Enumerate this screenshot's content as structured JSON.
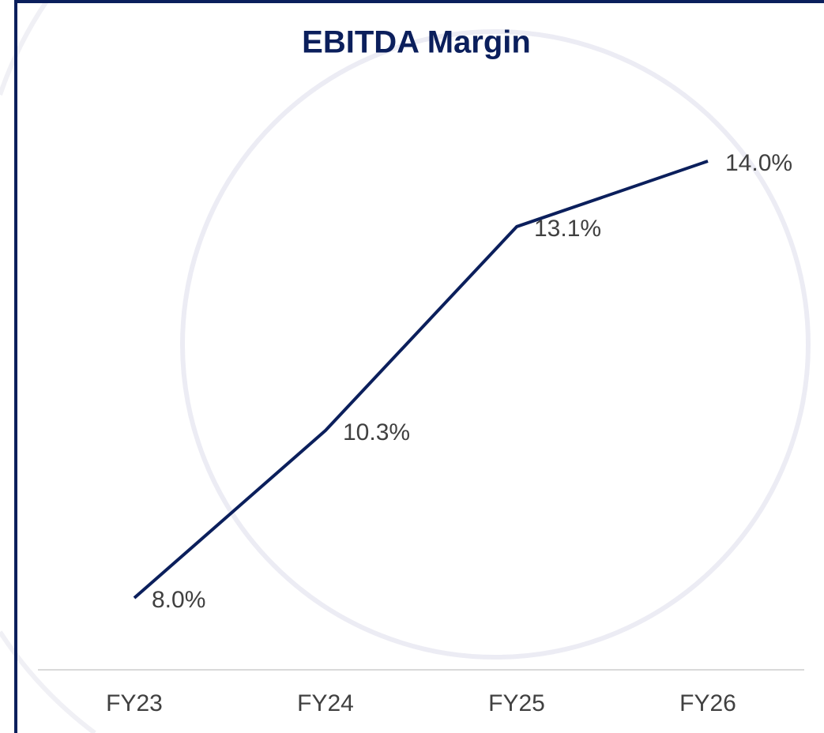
{
  "chart_data": {
    "type": "line",
    "title": "EBITDA Margin",
    "categories": [
      "FY23",
      "FY24",
      "FY25",
      "FY26"
    ],
    "series": [
      {
        "name": "EBITDA Margin",
        "color": "#0b1f5c",
        "values": [
          8.0,
          10.3,
          13.1,
          14.0
        ],
        "value_labels": [
          "8.0%",
          "10.3%",
          "13.1%",
          "14.0%"
        ]
      }
    ]
  }
}
